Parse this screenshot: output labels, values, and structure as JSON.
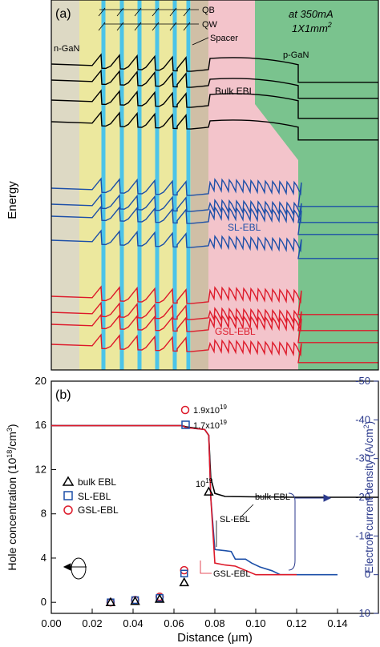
{
  "colors": {
    "ngan": "#ddd9c4",
    "barrier": "#ece89e",
    "well": "#4cc4e8",
    "spacer": "#d0bfa6",
    "ebl": "#f3c4cb",
    "pgan": "#7ac38e",
    "bulk": "#000000",
    "sl": "#1c4fa8",
    "gsl": "#dd1a2a",
    "axis_right": "#2b3a8c",
    "marker_bulk": "#000000",
    "marker_sl": "#1c4fa8",
    "marker_gsl": "#dd1a2a"
  },
  "chart_data": [
    {
      "type": "line",
      "panel_label": "(a)",
      "ylabel": "Energy",
      "conditions": [
        "at 350mA",
        "1X1mm"
      ],
      "conditions_superscript": "2",
      "region_labels": {
        "ngan": "n-GaN",
        "pgan": "p-GaN"
      },
      "structure_labels": {
        "qb": "QB",
        "qw": "QW",
        "spacer": "Spacer"
      },
      "series": [
        {
          "name": "Bulk EBL",
          "color": "#000000"
        },
        {
          "name": "SL-EBL",
          "color": "#1c4fa8"
        },
        {
          "name": "GSL-EBL",
          "color": "#dd1a2a"
        }
      ],
      "x_shared_with_panel_b": true
    },
    {
      "type": "line",
      "panel_label": "(b)",
      "xlabel": "Distance (μm)",
      "ylabel_left_main": "Hole concentration (10",
      "ylabel_left_sup1": "18",
      "ylabel_left_mid": "/cm",
      "ylabel_left_sup2": "3",
      "ylabel_left_end": ")",
      "ylabel_right_main": "Electron current density (A/cm",
      "ylabel_right_sup": "2",
      "ylabel_right_end": ")",
      "xlim": [
        0.0,
        0.16
      ],
      "ylim_left": [
        -1,
        20
      ],
      "ylim_right": [
        10,
        -50
      ],
      "x_ticks": [
        "0.00",
        "0.02",
        "0.04",
        "0.06",
        "0.08",
        "0.10",
        "0.12",
        "0.14"
      ],
      "y_ticks_left": [
        "0",
        "4",
        "8",
        "12",
        "16",
        "20"
      ],
      "y_ticks_right": [
        "10",
        "0",
        "-10",
        "-20",
        "-30",
        "-40",
        "-50"
      ],
      "grid": false,
      "legend": [
        "bulk EBL",
        "SL-EBL",
        "GSL-EBL"
      ],
      "legend_position": "left",
      "hole_concentration_markers": {
        "x": [
          0.029,
          0.041,
          0.053,
          0.065,
          0.077
        ],
        "bulk": [
          0.0,
          0.1,
          0.3,
          1.8,
          10.0
        ],
        "sl": [
          0.0,
          0.2,
          0.4,
          2.6,
          null
        ],
        "gsl": [
          0.0,
          0.2,
          0.5,
          2.9,
          null
        ]
      },
      "peak_labels": [
        {
          "marker": "circle",
          "color": "#dd1a2a",
          "mantissa": "1.9x10",
          "exp": "19"
        },
        {
          "marker": "square",
          "color": "#1c4fa8",
          "mantissa": "1.7x10",
          "exp": "19"
        },
        {
          "marker": "triangle",
          "color": "#000000",
          "mantissa": "10",
          "exp": "19"
        }
      ],
      "current_series": [
        {
          "name": "bulk EBL",
          "color": "#000000",
          "x": [
            0.0,
            0.064,
            0.066,
            0.075,
            0.077,
            0.078,
            0.08,
            0.085,
            0.1,
            0.12,
            0.14,
            0.16
          ],
          "y": [
            -38.5,
            -38.5,
            -38.2,
            -37.5,
            -36.0,
            -25.0,
            -21.0,
            -20.2,
            -20.1,
            -20.0,
            -20.0,
            -20.0
          ]
        },
        {
          "name": "SL-EBL",
          "color": "#1c4fa8",
          "x": [
            0.0,
            0.064,
            0.066,
            0.075,
            0.077,
            0.078,
            0.08,
            0.085,
            0.088,
            0.09,
            0.095,
            0.098,
            0.102,
            0.108,
            0.112,
            0.12,
            0.14
          ],
          "y": [
            -38.5,
            -38.5,
            -38.0,
            -37.5,
            -36.0,
            -20.0,
            -6.5,
            -6.2,
            -6.0,
            -4.0,
            -4.0,
            -3.0,
            -2.0,
            -1.0,
            0.0,
            0.0,
            0.0
          ]
        },
        {
          "name": "GSL-EBL",
          "color": "#dd1a2a",
          "x": [
            0.0,
            0.064,
            0.066,
            0.075,
            0.077,
            0.078,
            0.08,
            0.085,
            0.09,
            0.1,
            0.12
          ],
          "y": [
            -38.5,
            -38.5,
            -38.0,
            -37.5,
            -36.0,
            -20.0,
            -3.0,
            -2.5,
            -2.2,
            0.0,
            0.0
          ]
        }
      ],
      "annotations": [
        "bulk EBL",
        "SL-EBL",
        "GSL-EBL"
      ]
    }
  ]
}
